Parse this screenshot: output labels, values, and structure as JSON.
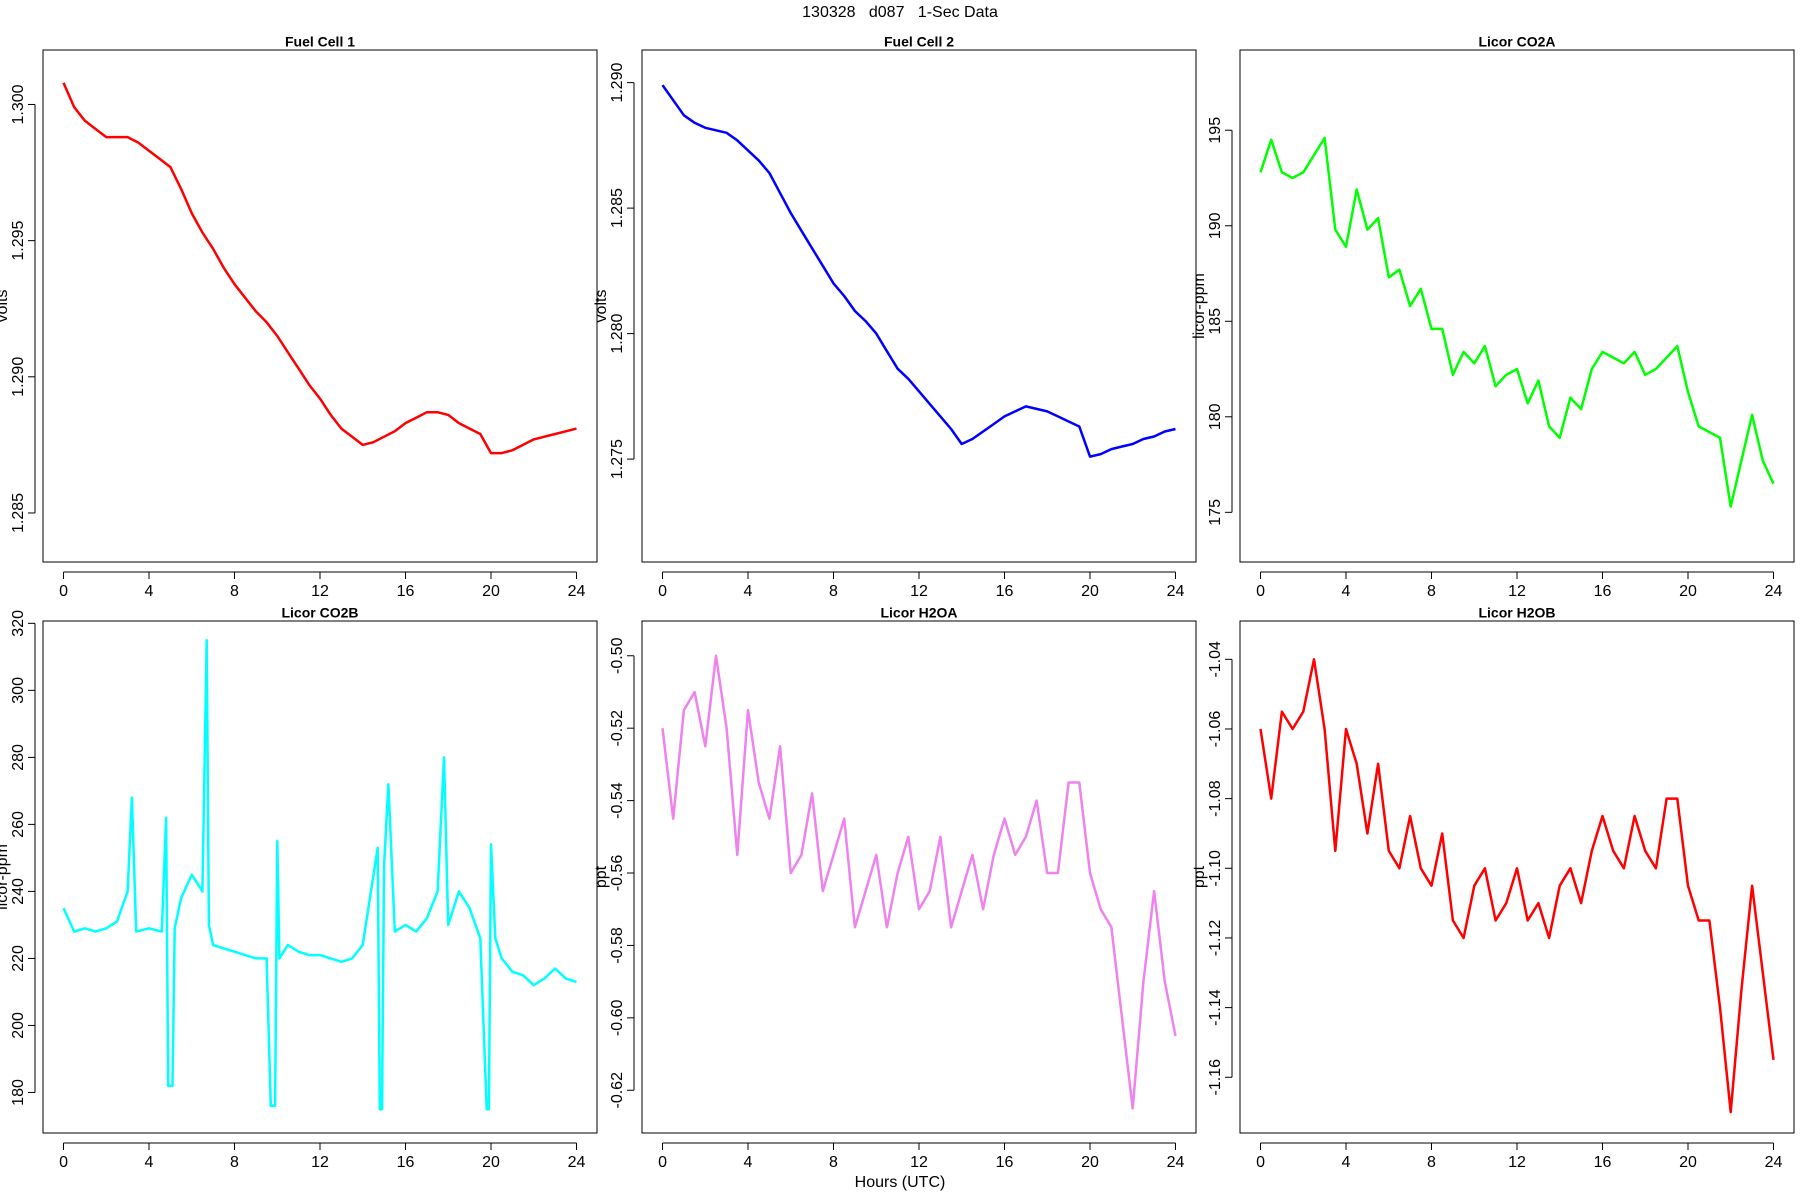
{
  "title": "130328   d087   1-Sec Data",
  "x_label": "Hours (UTC)",
  "chart_data": [
    {
      "type": "line",
      "title": "Fuel Cell 1",
      "y_label": "volts",
      "x": [
        0,
        0.5,
        1,
        1.5,
        2,
        2.5,
        3,
        3.5,
        4,
        4.5,
        5,
        5.5,
        6,
        6.5,
        7,
        7.5,
        8,
        8.5,
        9,
        9.5,
        10,
        10.5,
        11,
        11.5,
        12,
        12.5,
        13,
        13.5,
        14,
        14.5,
        15,
        15.5,
        16,
        16.5,
        17,
        17.5,
        18,
        18.5,
        19,
        19.5,
        20,
        20.5,
        21,
        21.5,
        22,
        22.5,
        23,
        23.5,
        24
      ],
      "series": [
        {
          "color": "#ff0000",
          "values": [
            1.3008,
            1.2999,
            1.2994,
            1.2991,
            1.2988,
            1.2988,
            1.2988,
            1.2986,
            1.2983,
            1.298,
            1.2977,
            1.2969,
            1.296,
            1.2953,
            1.2947,
            1.294,
            1.2934,
            1.2929,
            1.2924,
            1.292,
            1.2915,
            1.2909,
            1.2903,
            1.2897,
            1.2892,
            1.2886,
            1.2881,
            1.2878,
            1.2875,
            1.2876,
            1.2878,
            1.288,
            1.2883,
            1.2885,
            1.2887,
            1.2887,
            1.2886,
            1.2883,
            1.2881,
            1.2879,
            1.2872,
            1.2872,
            1.2873,
            1.2875,
            1.2877,
            1.2878,
            1.2879,
            1.288,
            1.2881
          ]
        }
      ],
      "xlim": [
        -0.96,
        24.96
      ],
      "xticks": [
        0,
        4,
        8,
        12,
        16,
        20,
        24
      ],
      "ylim": [
        1.2832,
        1.302
      ],
      "yticks": [
        1.285,
        {
          "value": 1.29,
          "label": "1.290"
        },
        1.295,
        {
          "value": 1.3,
          "label": "1.300"
        }
      ]
    },
    {
      "type": "line",
      "title": "Fuel Cell 2",
      "y_label": "volts",
      "x": [
        0,
        0.5,
        1,
        1.5,
        2,
        2.5,
        3,
        3.5,
        4,
        4.5,
        5,
        5.5,
        6,
        6.5,
        7,
        7.5,
        8,
        8.5,
        9,
        9.5,
        10,
        10.5,
        11,
        11.5,
        12,
        12.5,
        13,
        13.5,
        14,
        14.5,
        15,
        15.5,
        16,
        16.5,
        17,
        17.5,
        18,
        18.5,
        19,
        19.5,
        20,
        20.5,
        21,
        21.5,
        22,
        22.5,
        23,
        23.5,
        24
      ],
      "series": [
        {
          "color": "#0000ff",
          "values": [
            1.2899,
            1.2893,
            1.2887,
            1.2884,
            1.2882,
            1.2881,
            1.288,
            1.2877,
            1.2873,
            1.2869,
            1.2864,
            1.2856,
            1.2848,
            1.2841,
            1.2834,
            1.2827,
            1.282,
            1.2815,
            1.2809,
            1.2805,
            1.28,
            1.2793,
            1.2786,
            1.2782,
            1.2777,
            1.2772,
            1.2767,
            1.2762,
            1.2756,
            1.2758,
            1.2761,
            1.2764,
            1.2767,
            1.2769,
            1.2771,
            1.277,
            1.2769,
            1.2767,
            1.2765,
            1.2763,
            1.2751,
            1.2752,
            1.2754,
            1.2755,
            1.2756,
            1.2758,
            1.2759,
            1.2761,
            1.2762
          ]
        }
      ],
      "xlim": [
        -0.96,
        24.96
      ],
      "xticks": [
        0,
        4,
        8,
        12,
        16,
        20,
        24
      ],
      "ylim": [
        1.2709,
        1.2913
      ],
      "yticks": [
        1.275,
        {
          "value": 1.28,
          "label": "1.280"
        },
        1.285,
        {
          "value": 1.29,
          "label": "1.290"
        }
      ]
    },
    {
      "type": "line",
      "title": "Licor CO2A",
      "y_label": "licor-ppm",
      "x": [
        0,
        0.5,
        1,
        1.5,
        2,
        2.5,
        3,
        3.5,
        4,
        4.5,
        5,
        5.5,
        6,
        6.5,
        7,
        7.5,
        8,
        8.5,
        9,
        9.5,
        10,
        10.5,
        11,
        11.5,
        12,
        12.5,
        13,
        13.5,
        14,
        14.5,
        15,
        15.5,
        16,
        16.5,
        17,
        17.5,
        18,
        18.5,
        19,
        19.5,
        20,
        20.5,
        21,
        21.5,
        22,
        22.5,
        23,
        23.5,
        24
      ],
      "series": [
        {
          "color": "#00ff00",
          "values": [
            192.8,
            194.5,
            192.8,
            192.5,
            192.8,
            193.7,
            194.6,
            189.8,
            188.9,
            191.9,
            189.8,
            190.4,
            187.3,
            187.7,
            185.8,
            186.7,
            184.6,
            184.6,
            182.2,
            183.4,
            182.8,
            183.7,
            181.6,
            182.2,
            182.5,
            180.7,
            181.9,
            179.5,
            178.9,
            181.0,
            180.4,
            182.5,
            183.4,
            183.1,
            182.8,
            183.4,
            182.2,
            182.5,
            183.1,
            183.7,
            181.3,
            179.5,
            179.2,
            178.9,
            175.3,
            177.7,
            180.1,
            177.7,
            176.5
          ]
        }
      ],
      "xlim": [
        -0.96,
        24.96
      ],
      "xticks": [
        0,
        4,
        8,
        12,
        16,
        20,
        24
      ],
      "ylim": [
        172.4,
        199.2
      ],
      "yticks": [
        175,
        180,
        185,
        190,
        195
      ]
    },
    {
      "type": "line",
      "title": "Licor CO2B",
      "y_label": "licor-ppm",
      "x": [
        0,
        0.5,
        1,
        1.5,
        2,
        2.5,
        3,
        3.2,
        3.4,
        4,
        4.6,
        4.8,
        4.9,
        5.1,
        5.2,
        5.5,
        6,
        6.5,
        6.7,
        6.8,
        7,
        7.5,
        8,
        8.5,
        9,
        9.5,
        9.7,
        9.9,
        10,
        10.1,
        10.5,
        11,
        11.5,
        12,
        12.5,
        13,
        13.5,
        14,
        14.7,
        14.8,
        14.9,
        15,
        15.2,
        15.5,
        16,
        16.5,
        17,
        17.5,
        17.8,
        18,
        18.5,
        19,
        19.5,
        19.8,
        19.9,
        20,
        20.2,
        20.5,
        21,
        21.5,
        22,
        22.5,
        23,
        23.5,
        24
      ],
      "series": [
        {
          "color": "#00ffff",
          "values": [
            235,
            228,
            229,
            228,
            229,
            231,
            240,
            268,
            228,
            229,
            228,
            262,
            182,
            182,
            229,
            238,
            245,
            240,
            315,
            230,
            224,
            223,
            222,
            221,
            220,
            220,
            176,
            176,
            255,
            220,
            224,
            222,
            221,
            221,
            220,
            219,
            220,
            224,
            253,
            175,
            175,
            248,
            272,
            228,
            230,
            228,
            232,
            240,
            280,
            230,
            240,
            235,
            226,
            175,
            175,
            254,
            226,
            220,
            216,
            215,
            212,
            214,
            217,
            214,
            213
          ]
        }
      ],
      "xlim": [
        -0.96,
        24.96
      ],
      "xticks": [
        0,
        4,
        8,
        12,
        16,
        20,
        24
      ],
      "ylim": [
        167.9,
        320.7
      ],
      "yticks": [
        180,
        200,
        220,
        240,
        260,
        280,
        300,
        320
      ]
    },
    {
      "type": "line",
      "title": "Licor H2OA",
      "y_label": "ppt",
      "x": [
        0,
        0.5,
        1,
        1.5,
        2,
        2.5,
        3,
        3.5,
        4,
        4.5,
        5,
        5.5,
        6,
        6.5,
        7,
        7.5,
        8,
        8.5,
        9,
        9.5,
        10,
        10.5,
        11,
        11.5,
        12,
        12.5,
        13,
        13.5,
        14,
        14.5,
        15,
        15.5,
        16,
        16.5,
        17,
        17.5,
        18,
        18.5,
        19,
        19.5,
        20,
        20.5,
        21,
        21.5,
        22,
        22.5,
        23,
        23.5,
        24
      ],
      "series": [
        {
          "color": "#ee82ee",
          "values": [
            -0.52,
            -0.545,
            -0.515,
            -0.51,
            -0.525,
            -0.5,
            -0.52,
            -0.555,
            -0.515,
            -0.535,
            -0.545,
            -0.525,
            -0.56,
            -0.555,
            -0.538,
            -0.565,
            -0.555,
            -0.545,
            -0.575,
            -0.565,
            -0.555,
            -0.575,
            -0.56,
            -0.55,
            -0.57,
            -0.565,
            -0.55,
            -0.575,
            -0.565,
            -0.555,
            -0.57,
            -0.555,
            -0.545,
            -0.555,
            -0.55,
            -0.54,
            -0.56,
            -0.56,
            -0.535,
            -0.535,
            -0.56,
            -0.57,
            -0.575,
            -0.6,
            -0.625,
            -0.59,
            -0.565,
            -0.59,
            -0.605
          ]
        }
      ],
      "xlim": [
        -0.96,
        24.96
      ],
      "xticks": [
        0,
        4,
        8,
        12,
        16,
        20,
        24
      ],
      "ylim": [
        -0.6318,
        -0.4904
      ],
      "yticks": [
        -0.62,
        {
          "value": -0.6,
          "label": "-0.60"
        },
        -0.58,
        -0.56,
        -0.54,
        -0.52,
        {
          "value": -0.5,
          "label": "-0.50"
        }
      ]
    },
    {
      "type": "line",
      "title": "Licor H2OB",
      "y_label": "ppt",
      "x": [
        0,
        0.5,
        1,
        1.5,
        2,
        2.5,
        3,
        3.5,
        4,
        4.5,
        5,
        5.5,
        6,
        6.5,
        7,
        7.5,
        8,
        8.5,
        9,
        9.5,
        10,
        10.5,
        11,
        11.5,
        12,
        12.5,
        13,
        13.5,
        14,
        14.5,
        15,
        15.5,
        16,
        16.5,
        17,
        17.5,
        18,
        18.5,
        19,
        19.5,
        20,
        20.5,
        21,
        21.5,
        22,
        22.5,
        23,
        23.5,
        24
      ],
      "series": [
        {
          "color": "#ff0000",
          "values": [
            -1.06,
            -1.08,
            -1.055,
            -1.06,
            -1.055,
            -1.04,
            -1.06,
            -1.095,
            -1.06,
            -1.07,
            -1.09,
            -1.07,
            -1.095,
            -1.1,
            -1.085,
            -1.1,
            -1.105,
            -1.09,
            -1.115,
            -1.12,
            -1.105,
            -1.1,
            -1.115,
            -1.11,
            -1.1,
            -1.115,
            -1.11,
            -1.12,
            -1.105,
            -1.1,
            -1.11,
            -1.095,
            -1.085,
            -1.095,
            -1.1,
            -1.085,
            -1.095,
            -1.1,
            -1.08,
            -1.08,
            -1.105,
            -1.115,
            -1.115,
            -1.14,
            -1.17,
            -1.135,
            -1.105,
            -1.13,
            -1.155
          ]
        }
      ],
      "xlim": [
        -0.96,
        24.96
      ],
      "xticks": [
        0,
        4,
        8,
        12,
        16,
        20,
        24
      ],
      "ylim": [
        -1.176,
        -1.029
      ],
      "yticks": [
        -1.16,
        -1.14,
        -1.12,
        {
          "value": -1.1,
          "label": "-1.10"
        },
        -1.08,
        -1.06,
        -1.04
      ]
    }
  ]
}
